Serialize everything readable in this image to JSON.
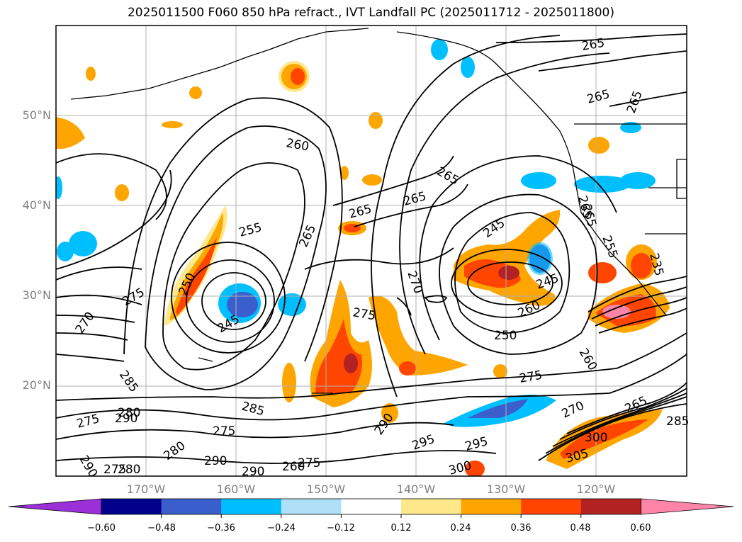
{
  "title": "2025011500 F060 850 hPa refract., IVT Landfall PC (2025011712 - 2025011800)",
  "lat_labels": [
    "50°N",
    "40°N",
    "30°N",
    "20°N"
  ],
  "lon_labels": [
    "170°W",
    "160°W",
    "150°W",
    "140°W",
    "130°W",
    "120°W"
  ],
  "colorbar": {
    "ticks": [
      "−0.60",
      "−0.48",
      "−0.36",
      "−0.24",
      "−0.12",
      "0.12",
      "0.24",
      "0.36",
      "0.48",
      "0.60"
    ],
    "colors": [
      "#9b30d9",
      "#00008b",
      "#3a5fcd",
      "#00bfff",
      "#b0e0f8",
      "#ffffff",
      "#ffe88a",
      "#ffa500",
      "#ff4500",
      "#b22222",
      "#ff85a8"
    ]
  },
  "contour_labels": [
    {
      "t": "260"
    },
    {
      "t": "265"
    },
    {
      "t": "265"
    },
    {
      "t": "265"
    },
    {
      "t": "265"
    },
    {
      "t": "265"
    },
    {
      "t": "265"
    },
    {
      "t": "265"
    },
    {
      "t": "255"
    },
    {
      "t": "265"
    },
    {
      "t": "250"
    },
    {
      "t": "245"
    },
    {
      "t": "270"
    },
    {
      "t": "275"
    },
    {
      "t": "270"
    },
    {
      "t": "285"
    },
    {
      "t": "275"
    },
    {
      "t": "245"
    },
    {
      "t": "245"
    },
    {
      "t": "260"
    },
    {
      "t": "250"
    },
    {
      "t": "260"
    },
    {
      "t": "275"
    },
    {
      "t": "285"
    },
    {
      "t": "290"
    },
    {
      "t": "295"
    },
    {
      "t": "295"
    },
    {
      "t": "300"
    },
    {
      "t": "270"
    },
    {
      "t": "265"
    },
    {
      "t": "305"
    },
    {
      "t": "300"
    },
    {
      "t": "275"
    },
    {
      "t": "280"
    },
    {
      "t": "290"
    },
    {
      "t": "275"
    },
    {
      "t": "280"
    },
    {
      "t": "290"
    },
    {
      "t": "280"
    },
    {
      "t": "290"
    },
    {
      "t": "275"
    },
    {
      "t": "290"
    },
    {
      "t": "275"
    },
    {
      "t": "260"
    },
    {
      "t": "265"
    },
    {
      "t": "235"
    },
    {
      "t": "285"
    },
    {
      "t": "255"
    }
  ]
}
